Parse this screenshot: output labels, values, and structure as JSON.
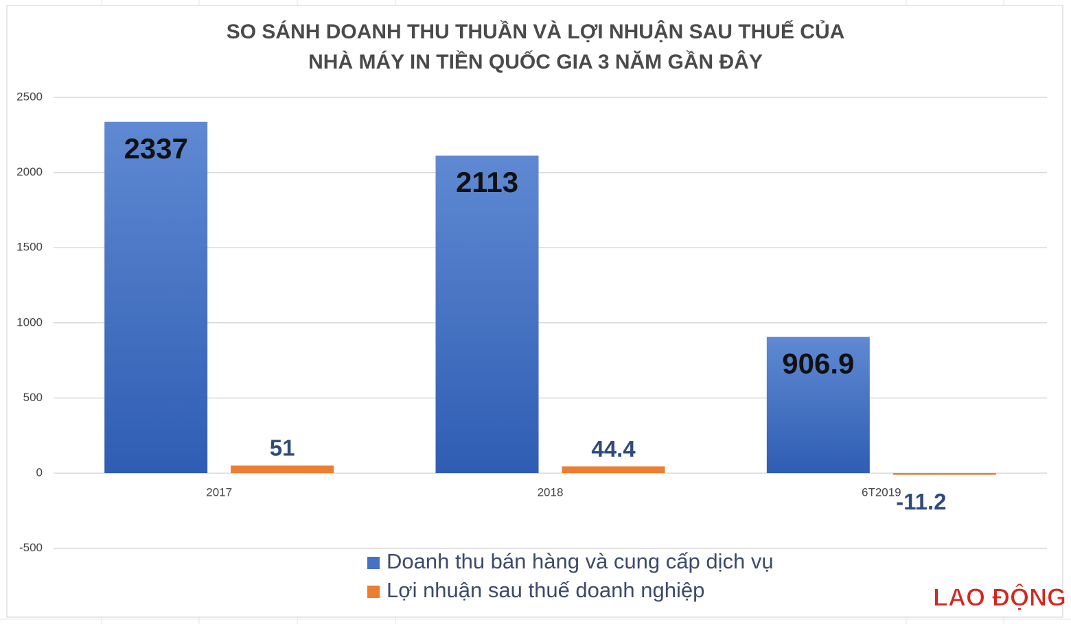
{
  "chart_data": {
    "type": "bar",
    "title": [
      "SO SÁNH DOANH THU THUẦN VÀ LỢI NHUẬN SAU THUẾ CỦA",
      "NHÀ MÁY IN TIỀN QUỐC GIA 3 NĂM GẦN ĐÂY"
    ],
    "categories": [
      "2017",
      "2018",
      "6T2019"
    ],
    "series": [
      {
        "name": "Doanh thu bán hàng và cung cấp dịch vụ",
        "color": "#4472c4",
        "values": [
          2337,
          2113,
          906.9
        ]
      },
      {
        "name": "Lợi nhuận sau thuế doanh nghiệp",
        "color": "#ed7d31",
        "values": [
          51,
          44.4,
          -11.2
        ]
      }
    ],
    "ylim": [
      -500,
      2500
    ],
    "yticks": [
      -500,
      0,
      500,
      1000,
      1500,
      2000,
      2500
    ],
    "grid": true,
    "legend": "bottom",
    "logo": "LAO ĐỘNG"
  }
}
